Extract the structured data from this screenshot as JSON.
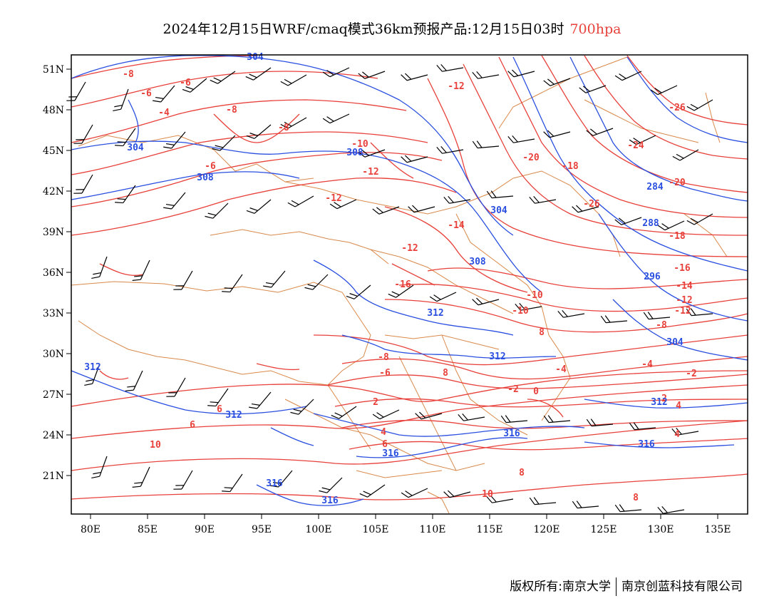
{
  "title": {
    "main": "2024年12月15日WRF/cmaq模式36km预报产品:12月15日03时",
    "level": "700hpa",
    "level_color": "#e8403a"
  },
  "footer": {
    "left": "版权所有:南京大学",
    "right": "南京创蓝科技有限公司"
  },
  "axes": {
    "lon_labels": [
      "80E",
      "85E",
      "90E",
      "95E",
      "100E",
      "105E",
      "110E",
      "115E",
      "120E",
      "125E",
      "130E",
      "135E"
    ],
    "lat_labels": [
      "51N",
      "48N",
      "45N",
      "42N",
      "39N",
      "36N",
      "33N",
      "30N",
      "27N",
      "24N",
      "21N"
    ]
  },
  "colors": {
    "temperature": "#e8403a",
    "height": "#2a4fe0",
    "border": "#d9894a",
    "wind": "#000000"
  },
  "temperature_labels": [
    "-8",
    "-6",
    "-6",
    "-8",
    "-4",
    "-6",
    "-8",
    "-10",
    "-12",
    "-12",
    "-12",
    "-14",
    "-12",
    "-16",
    "-20",
    "-18",
    "-26",
    "-26",
    "-24",
    "-20",
    "-18",
    "-16",
    "-14",
    "-12",
    "-12",
    "-10",
    "-10",
    "-8",
    "-8",
    "-6",
    "-4",
    "-4",
    "-2",
    "-2",
    "0",
    "2",
    "4",
    "2",
    "4",
    "6",
    "8",
    "10",
    "8",
    "6",
    "4",
    "6",
    "8",
    "8",
    "10"
  ],
  "height_labels": [
    "304",
    "304",
    "308",
    "308",
    "304",
    "308",
    "312",
    "312",
    "312",
    "312",
    "316",
    "316",
    "316",
    "316",
    "284",
    "288",
    "296",
    "304",
    "312",
    "316"
  ]
}
